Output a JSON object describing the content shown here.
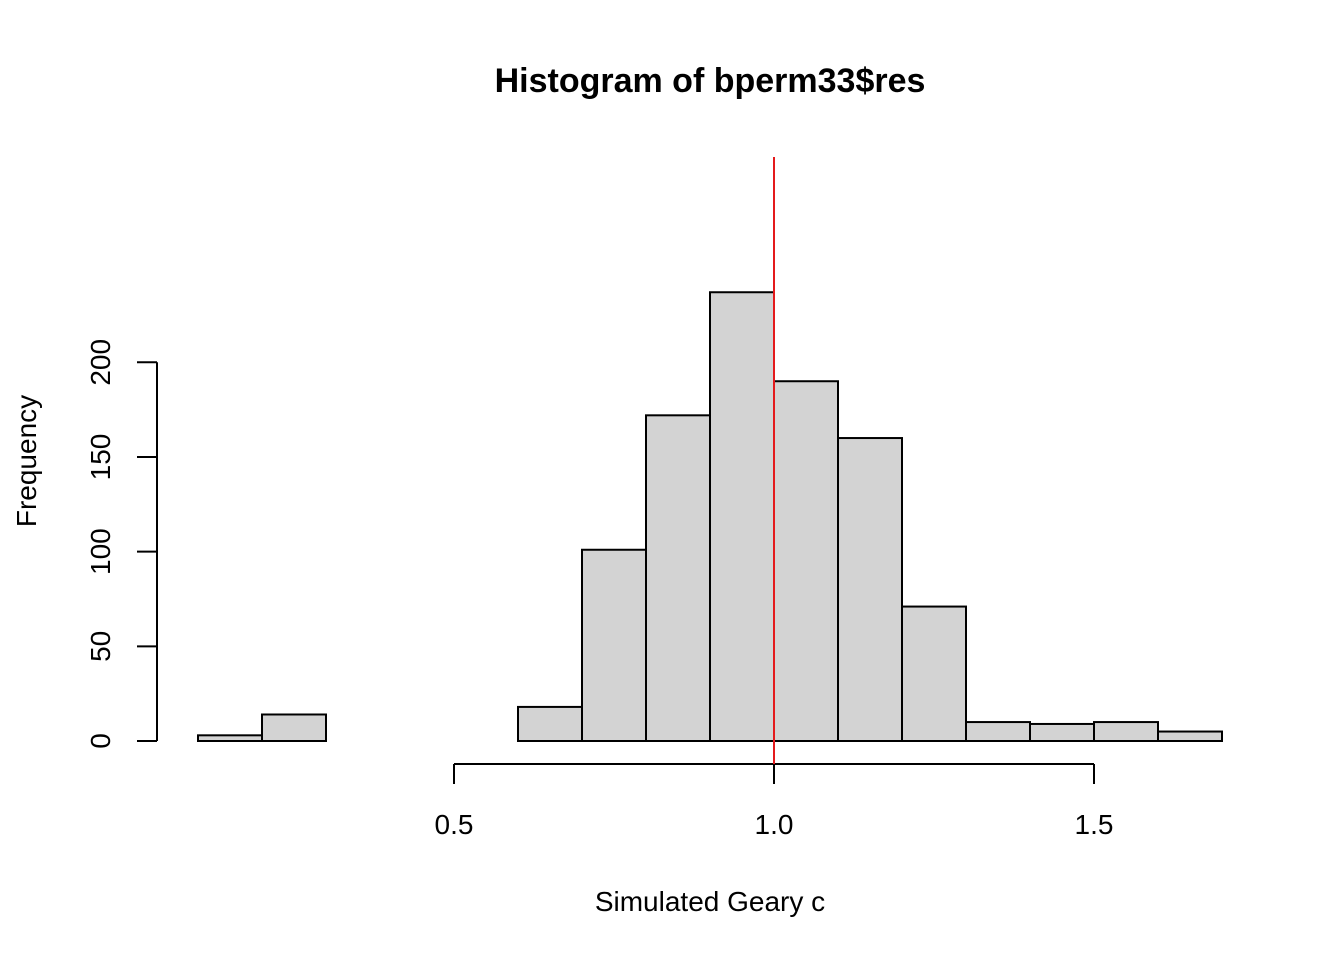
{
  "chart_data": {
    "type": "bar",
    "title": "Histogram of bperm33$res",
    "xlabel": "Simulated Geary c",
    "ylabel": "Frequency",
    "bin_edges": [
      0.1,
      0.2,
      0.3,
      0.4,
      0.5,
      0.6,
      0.7,
      0.8,
      0.9,
      1.0,
      1.1,
      1.2,
      1.3,
      1.4,
      1.5,
      1.6,
      1.7
    ],
    "values": [
      3,
      14,
      0,
      0,
      0,
      18,
      101,
      172,
      237,
      190,
      160,
      71,
      10,
      9,
      10,
      5
    ],
    "xlim": [
      0.1,
      1.7
    ],
    "ylim": [
      0,
      250
    ],
    "x_ticks": [
      "0.5",
      "1.0",
      "1.5"
    ],
    "y_ticks": [
      "0",
      "50",
      "100",
      "150",
      "200"
    ],
    "reference_line": {
      "x": 1.0,
      "color": "#e41a1c"
    },
    "bar_color": "#d3d3d3",
    "grid": false,
    "legend": "none"
  }
}
